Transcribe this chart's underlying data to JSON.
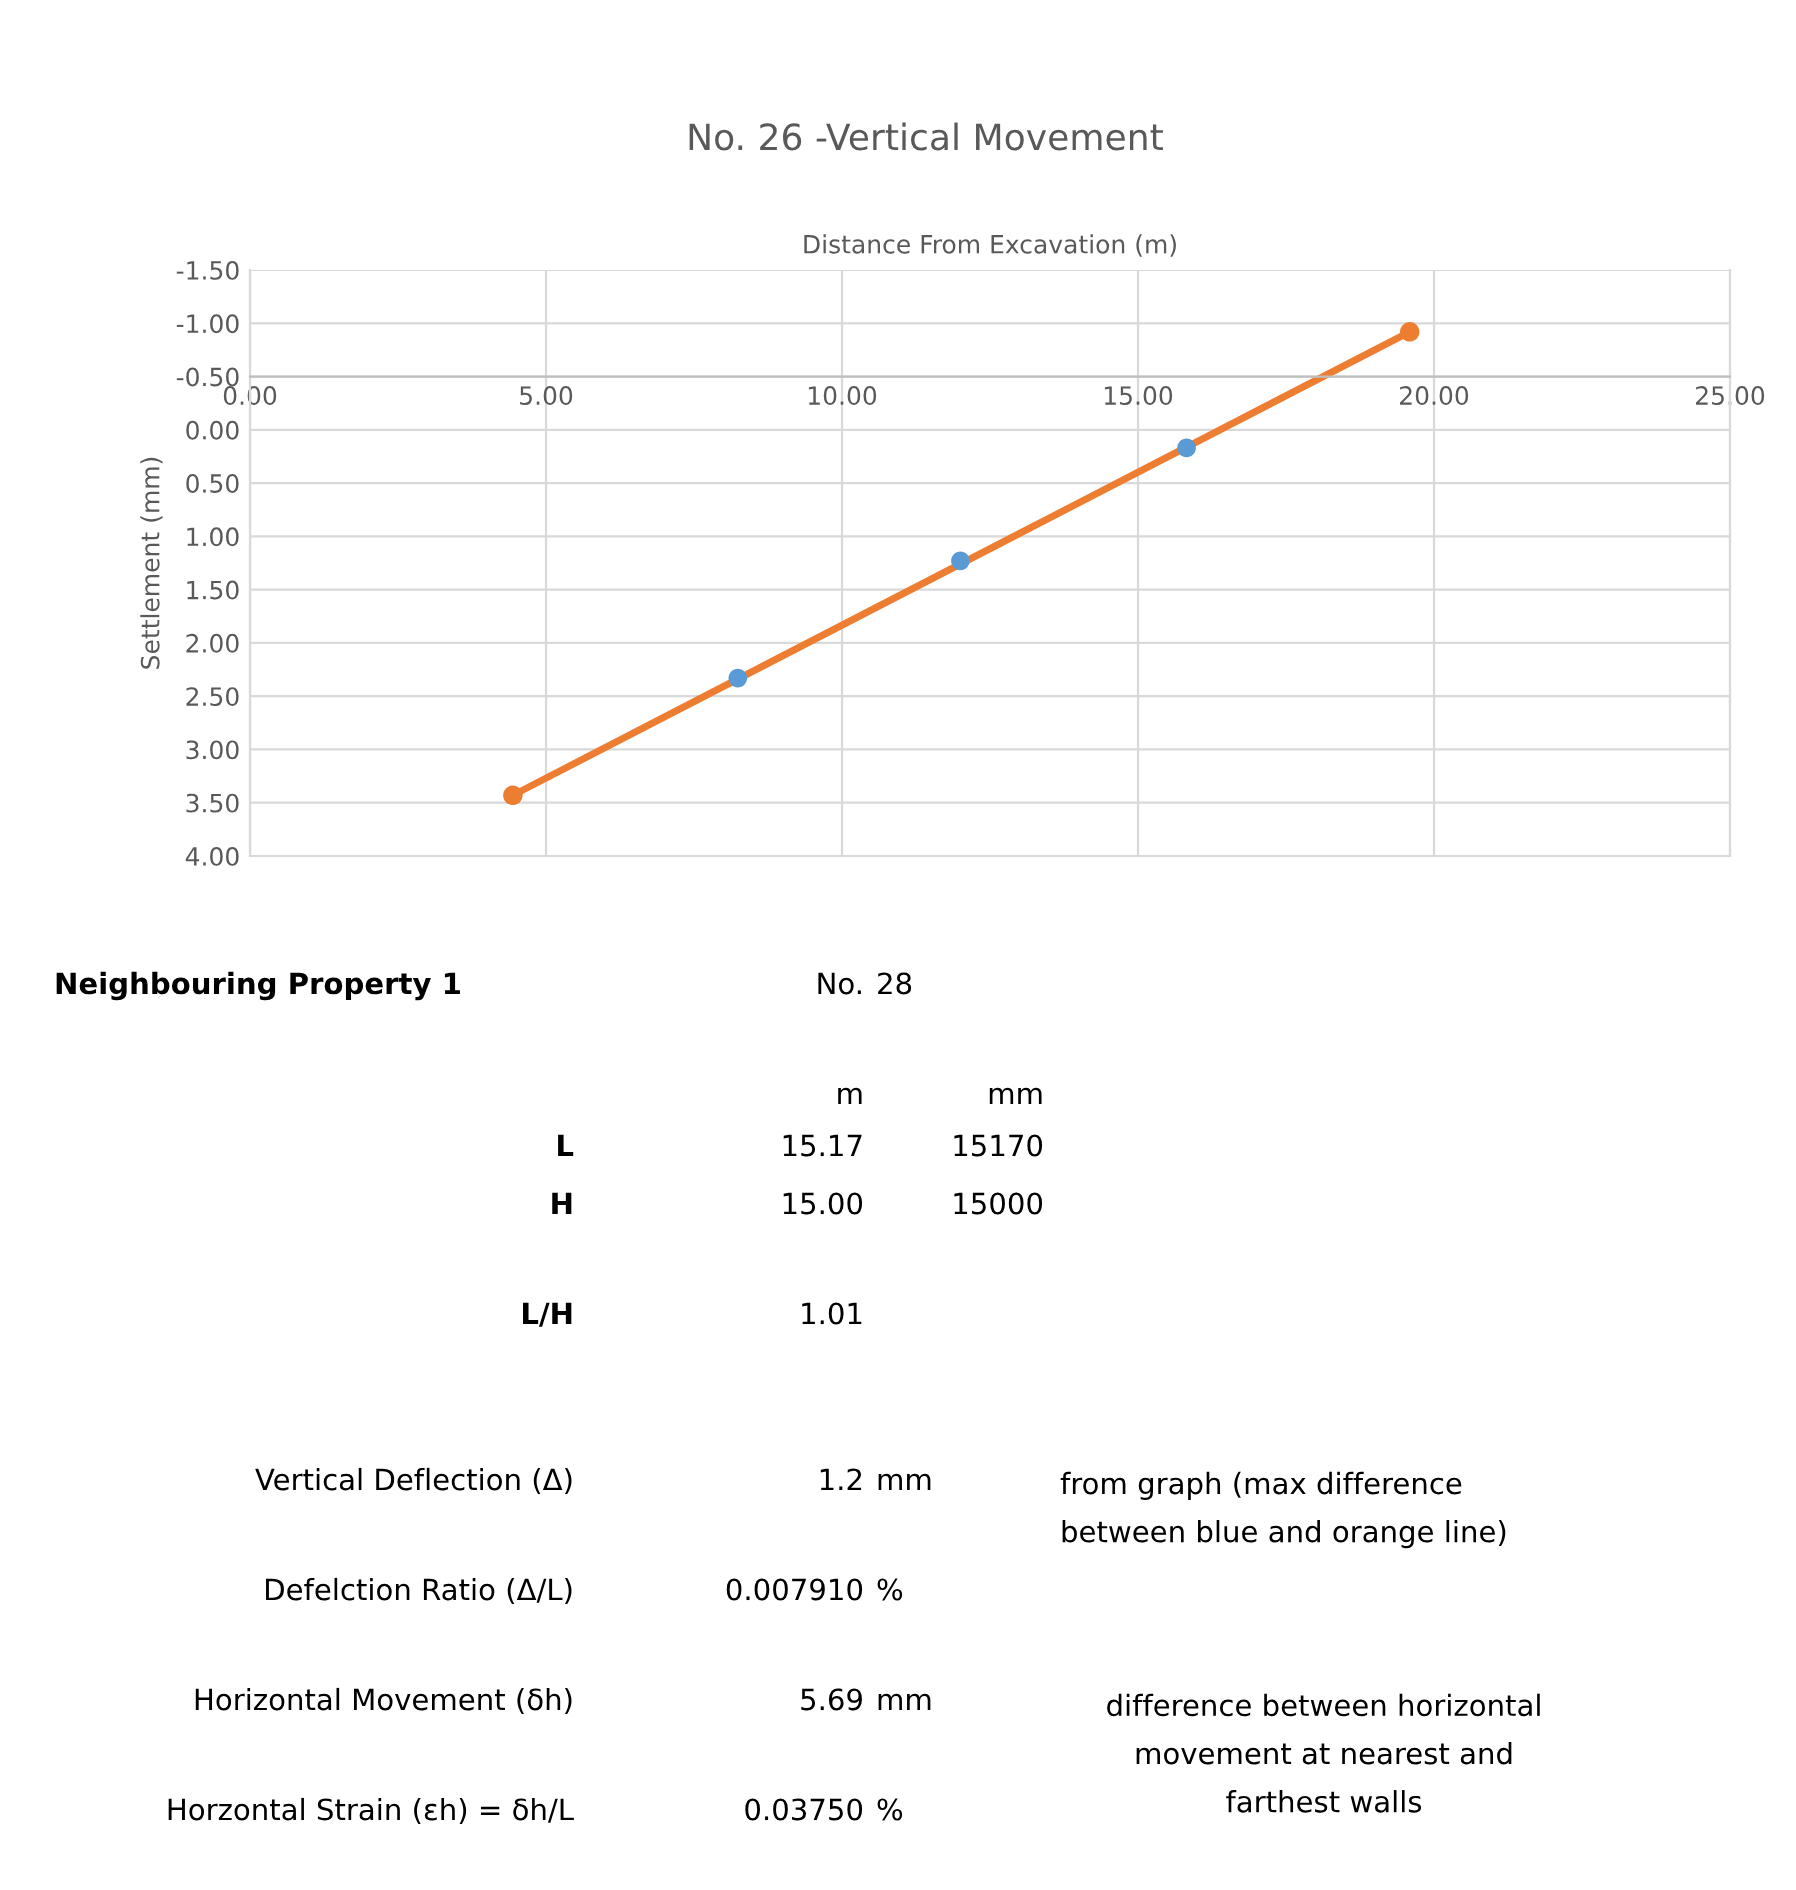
{
  "chart_data": [
    {
      "type": "line",
      "title": "No. 26 -Vertical Movement",
      "xlabel": "Distance From Excavation (m)",
      "ylabel": "Settlement (mm)",
      "series": [
        {
          "type": "scatter",
          "color": "#5b9bd5",
          "marker": "circle",
          "x": [
            8.24,
            12.0,
            15.82
          ],
          "values": [
            2.33,
            1.23,
            0.17
          ]
        },
        {
          "type": "line",
          "color": "#ed7d31",
          "marker": "circle",
          "line_style": "solid",
          "x": [
            4.44,
            19.59
          ],
          "values": [
            3.43,
            -0.92
          ]
        }
      ],
      "xlim": [
        0,
        25
      ],
      "xticks": [
        {
          "value": 0,
          "label": "0.00"
        },
        {
          "value": 5,
          "label": "5.00"
        },
        {
          "value": 10,
          "label": "10.00"
        },
        {
          "value": 15,
          "label": "15.00"
        },
        {
          "value": 20,
          "label": "20.00"
        },
        {
          "value": 25,
          "label": "25.00"
        }
      ],
      "ylim": [
        4,
        -1.5
      ],
      "yticks": [
        {
          "value": -1.5,
          "label": "-1.50"
        },
        {
          "value": -1,
          "label": "-1.00"
        },
        {
          "value": -0.5,
          "label": "-0.50"
        },
        {
          "value": 0,
          "label": "0.00"
        },
        {
          "value": 0.5,
          "label": "0.50"
        },
        {
          "value": 1,
          "label": "1.00"
        },
        {
          "value": 1.5,
          "label": "1.50"
        },
        {
          "value": 2,
          "label": "2.00"
        },
        {
          "value": 2.5,
          "label": "2.50"
        },
        {
          "value": 3,
          "label": "3.00"
        },
        {
          "value": 3.5,
          "label": "3.50"
        },
        {
          "value": 4,
          "label": "4.00"
        }
      ],
      "grid": true,
      "legend": false
    },
    {
      "type": "other",
      "annotations": [
        "Neighbouring Property 1",
        "No.",
        "28",
        "m",
        "mm",
        "L",
        "15.17",
        "15170",
        "H",
        "15.00",
        "15000",
        "L/H",
        "1.01",
        "Vertical Deflection (Δ)",
        "1.2",
        "mm",
        "from graph (max difference\nbetween blue and orange line)",
        "Defelction Ratio (Δ/L)",
        "0.007910",
        "%",
        "Horizontal Movement (δh)",
        "5.69",
        "mm",
        "difference between horizontal\nmovement at nearest and\nfarthest walls",
        "Horzontal Strain (εh) = δh/L",
        "0.03750",
        "%"
      ]
    }
  ]
}
